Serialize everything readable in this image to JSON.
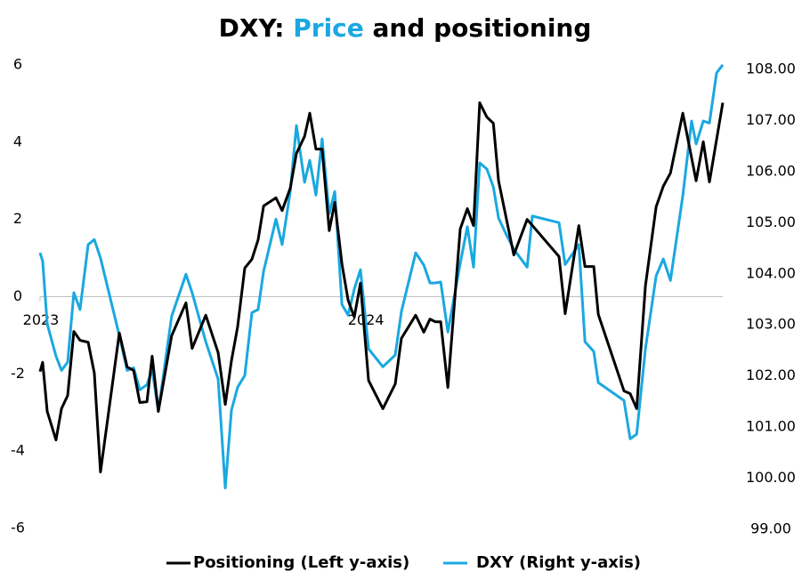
{
  "chart_data": {
    "type": "line",
    "title_parts": [
      {
        "text": "DXY:"
      },
      {
        "text": "Price",
        "color": "#1aa8e0"
      },
      {
        "text": "and positioning"
      }
    ],
    "xlim": [
      2023,
      2025.101
    ],
    "xticks": [
      2023,
      2024
    ],
    "ylim": [
      -6,
      6
    ],
    "yticks": [
      -6,
      -4,
      -2,
      0,
      2,
      4,
      6
    ],
    "y2lim": [
      99,
      108
    ],
    "y2ticks": [
      {
        "value": 99,
        "label": "99.00"
      },
      {
        "value": 100,
        "label": "100.00"
      },
      {
        "value": 101,
        "label": "101.00"
      },
      {
        "value": 102,
        "label": "102.00"
      },
      {
        "value": 103,
        "label": "103.00"
      },
      {
        "value": 104,
        "label": "104.00"
      },
      {
        "value": 105,
        "label": "105.00"
      },
      {
        "value": 106,
        "label": "106.00"
      },
      {
        "value": 107,
        "label": "107.00"
      },
      {
        "value": 108,
        "label": "108.00"
      }
    ],
    "grid": false,
    "legend": "bottom",
    "series": [
      {
        "name": "Positioning (Left y-axis)",
        "color": "#000000",
        "axis": "y",
        "x": [
          2023.0,
          2023.008,
          2023.022,
          2023.049,
          2023.066,
          2023.085,
          2023.104,
          2023.123,
          2023.148,
          2023.167,
          2023.186,
          2023.244,
          2023.268,
          2023.288,
          2023.307,
          2023.329,
          2023.345,
          2023.364,
          2023.405,
          2023.449,
          2023.468,
          2023.51,
          2023.548,
          2023.57,
          2023.589,
          2023.608,
          2023.63,
          2023.652,
          2023.671,
          2023.688,
          2023.726,
          2023.745,
          2023.77,
          2023.789,
          2023.814,
          2023.83,
          2023.849,
          2023.868,
          2023.89,
          2023.907,
          2023.929,
          2023.948,
          2023.967,
          2023.986,
          2024.011,
          2024.055,
          2024.093,
          2024.112,
          2024.156,
          2024.181,
          2024.2,
          2024.216,
          2024.233,
          2024.255,
          2024.293,
          2024.315,
          2024.334,
          2024.353,
          2024.375,
          2024.395,
          2024.411,
          2024.433,
          2024.458,
          2024.499,
          2024.597,
          2024.616,
          2024.658,
          2024.677,
          2024.704,
          2024.718,
          2024.797,
          2024.816,
          2024.836,
          2024.863,
          2024.896,
          2024.918,
          2024.94,
          2024.978,
          2025.019,
          2025.041,
          2025.06,
          2025.101
        ],
        "values": [
          -1.94,
          -1.7,
          -2.97,
          -3.71,
          -2.9,
          -2.56,
          -0.9,
          -1.13,
          -1.18,
          -1.98,
          -4.54,
          -0.94,
          -1.82,
          -1.91,
          -2.74,
          -2.72,
          -1.54,
          -2.97,
          -1.01,
          -0.16,
          -1.34,
          -0.48,
          -1.45,
          -2.79,
          -1.66,
          -0.78,
          0.74,
          0.97,
          1.47,
          2.35,
          2.56,
          2.23,
          2.81,
          3.71,
          4.15,
          4.75,
          3.82,
          3.82,
          1.71,
          2.44,
          0.85,
          -0.09,
          -0.53,
          0.35,
          -2.17,
          -2.9,
          -2.26,
          -1.08,
          -0.48,
          -0.92,
          -0.58,
          -0.65,
          -0.65,
          -2.35,
          1.75,
          2.28,
          1.84,
          5.02,
          4.65,
          4.49,
          3.0,
          2.1,
          1.08,
          2.0,
          1.04,
          -0.44,
          1.84,
          0.78,
          0.78,
          -0.46,
          -2.44,
          -2.51,
          -2.9,
          0.28,
          2.33,
          2.86,
          3.2,
          4.75,
          3.0,
          4.01,
          2.97,
          5.02
        ]
      },
      {
        "name": "DXY (Right y-axis)",
        "color": "#1aa8e0",
        "axis": "y2",
        "x": [
          2023.0,
          2023.008,
          2023.022,
          2023.049,
          2023.066,
          2023.085,
          2023.104,
          2023.123,
          2023.148,
          2023.167,
          2023.186,
          2023.244,
          2023.268,
          2023.288,
          2023.307,
          2023.329,
          2023.345,
          2023.364,
          2023.405,
          2023.449,
          2023.468,
          2023.51,
          2023.548,
          2023.57,
          2023.589,
          2023.608,
          2023.63,
          2023.652,
          2023.671,
          2023.688,
          2023.726,
          2023.745,
          2023.77,
          2023.789,
          2023.814,
          2023.83,
          2023.849,
          2023.868,
          2023.89,
          2023.907,
          2023.929,
          2023.948,
          2023.967,
          2023.986,
          2024.011,
          2024.055,
          2024.093,
          2024.112,
          2024.156,
          2024.181,
          2024.2,
          2024.216,
          2024.233,
          2024.255,
          2024.293,
          2024.315,
          2024.334,
          2024.353,
          2024.375,
          2024.395,
          2024.411,
          2024.433,
          2024.458,
          2024.499,
          2024.515,
          2024.597,
          2024.616,
          2024.658,
          2024.677,
          2024.704,
          2024.718,
          2024.797,
          2024.816,
          2024.836,
          2024.863,
          2024.896,
          2024.918,
          2024.94,
          2024.978,
          2025.005,
          2025.019,
          2025.041,
          2025.06,
          2025.082,
          2025.101
        ],
        "values": [
          104.41,
          104.25,
          103.02,
          102.39,
          102.11,
          102.27,
          103.63,
          103.3,
          104.57,
          104.67,
          104.31,
          102.79,
          102.11,
          102.16,
          101.73,
          101.83,
          102.13,
          101.31,
          103.17,
          103.99,
          103.63,
          102.67,
          101.94,
          99.81,
          101.33,
          101.78,
          102.01,
          103.24,
          103.3,
          104.05,
          105.07,
          104.57,
          105.61,
          106.9,
          105.79,
          106.22,
          105.54,
          106.64,
          105.18,
          105.61,
          103.4,
          103.19,
          103.7,
          104.08,
          102.53,
          102.18,
          102.41,
          103.26,
          104.41,
          104.17,
          103.82,
          103.82,
          103.84,
          102.86,
          104.2,
          104.92,
          104.13,
          106.17,
          106.05,
          105.7,
          105.09,
          104.79,
          104.48,
          104.13,
          105.13,
          105.0,
          104.18,
          104.57,
          102.67,
          102.48,
          101.87,
          101.52,
          100.77,
          100.86,
          102.53,
          103.96,
          104.29,
          103.87,
          105.53,
          106.99,
          106.54,
          106.99,
          106.95,
          107.93,
          108.09
        ]
      }
    ]
  }
}
